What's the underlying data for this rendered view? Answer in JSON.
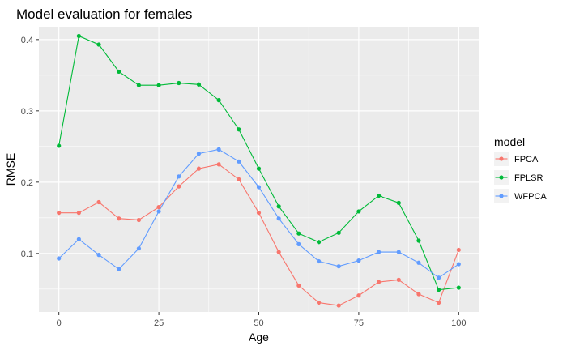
{
  "chart_data": {
    "type": "line",
    "title": "Model evaluation for females",
    "xlabel": "Age",
    "ylabel": "RMSE",
    "xlim": [
      -5,
      105
    ],
    "ylim": [
      0.018,
      0.418
    ],
    "x_ticks": [
      0,
      25,
      50,
      75,
      100
    ],
    "y_ticks": [
      0.1,
      0.2,
      0.3,
      0.4
    ],
    "x_tick_labels": [
      "0",
      "25",
      "50",
      "75",
      "100"
    ],
    "y_tick_labels": [
      "0.1",
      "0.2",
      "0.3",
      "0.4"
    ],
    "grid": true,
    "legend_position": "right",
    "legend_title": "model",
    "x": [
      0,
      5,
      10,
      15,
      20,
      25,
      30,
      35,
      40,
      45,
      50,
      55,
      60,
      65,
      70,
      75,
      80,
      85,
      90,
      95,
      100
    ],
    "series": [
      {
        "name": "FPCA",
        "color": "#F8766D",
        "values": [
          0.157,
          0.157,
          0.172,
          0.149,
          0.147,
          0.165,
          0.194,
          0.219,
          0.225,
          0.204,
          0.157,
          0.102,
          0.055,
          0.031,
          0.027,
          0.041,
          0.06,
          0.063,
          0.043,
          0.031,
          0.105
        ]
      },
      {
        "name": "FPLSR",
        "color": "#00BA38",
        "values": [
          0.251,
          0.405,
          0.393,
          0.355,
          0.336,
          0.336,
          0.339,
          0.337,
          0.315,
          0.274,
          0.219,
          0.166,
          0.128,
          0.116,
          0.129,
          0.159,
          0.181,
          0.171,
          0.118,
          0.049,
          0.052
        ]
      },
      {
        "name": "WFPCA",
        "color": "#619CFF",
        "values": [
          0.093,
          0.12,
          0.098,
          0.078,
          0.107,
          0.159,
          0.208,
          0.24,
          0.246,
          0.229,
          0.193,
          0.149,
          0.113,
          0.089,
          0.082,
          0.09,
          0.102,
          0.102,
          0.087,
          0.066,
          0.085
        ]
      }
    ]
  }
}
